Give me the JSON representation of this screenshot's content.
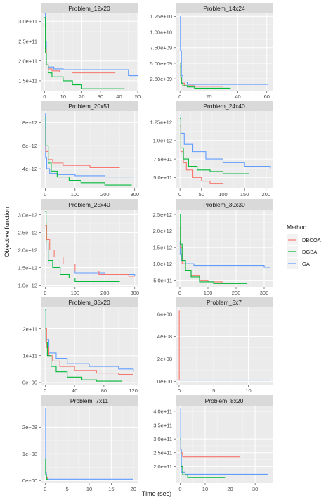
{
  "figure": {
    "xlabel": "Time (sec)",
    "ylabel": "Objective function",
    "legend": {
      "title": "Method",
      "placement": "right",
      "entries": [
        {
          "label": "DBCOA",
          "color": "#F8766D"
        },
        {
          "label": "DGBA",
          "color": "#00BA38"
        },
        {
          "label": "GA",
          "color": "#619CFF"
        }
      ]
    }
  },
  "chart_data": [
    {
      "type": "line",
      "title": "Problem_12x20",
      "xlim": [
        -2,
        50
      ],
      "ylim": [
        125000000000.0,
        320000000000.0
      ],
      "xticks": [
        0,
        10,
        20,
        30,
        40,
        50
      ],
      "xtick_labels": [
        "0",
        "10",
        "20",
        "30",
        "40",
        "50"
      ],
      "yticks": [
        150000000000.0,
        200000000000.0,
        250000000000.0,
        300000000000.0
      ],
      "ytick_labels": [
        "1.5e+11",
        "2.0e+11",
        "2.5e+11",
        "3.0e+11"
      ],
      "series": [
        {
          "name": "DBCOA",
          "x": [
            0,
            0.5,
            1,
            2,
            4,
            8,
            15,
            38
          ],
          "y": [
            290000000000.0,
            230000000000.0,
            190000000000.0,
            180000000000.0,
            175000000000.0,
            172000000000.0,
            170000000000.0,
            170000000000.0
          ]
        },
        {
          "name": "DGBA",
          "x": [
            0,
            0.5,
            1,
            2,
            4,
            10,
            15,
            20,
            43
          ],
          "y": [
            310000000000.0,
            220000000000.0,
            190000000000.0,
            170000000000.0,
            160000000000.0,
            150000000000.0,
            140000000000.0,
            130000000000.0,
            130000000000.0
          ]
        },
        {
          "name": "GA",
          "x": [
            0,
            0.5,
            1,
            2,
            5,
            10,
            45,
            50
          ],
          "y": [
            320000000000.0,
            250000000000.0,
            190000000000.0,
            185000000000.0,
            180000000000.0,
            178000000000.0,
            163000000000.0,
            163000000000.0
          ]
        }
      ]
    },
    {
      "type": "line",
      "title": "Problem_14x24",
      "xlim": [
        -3,
        64
      ],
      "ylim": [
        600000000.0,
        13000000000.0
      ],
      "xticks": [
        0,
        20,
        40,
        60
      ],
      "xtick_labels": [
        "0",
        "20",
        "40",
        "60"
      ],
      "yticks": [
        2500000000.0,
        5000000000.0,
        7500000000.0,
        10000000000.0,
        12500000000.0
      ],
      "ytick_labels": [
        "2.50e+09",
        "5.00e+09",
        "7.50e+09",
        "1.00e+10",
        "1.25e+10"
      ],
      "series": [
        {
          "name": "DBCOA",
          "x": [
            0,
            0.5,
            1,
            3,
            10,
            30
          ],
          "y": [
            4500000000.0,
            2500000000.0,
            1800000000.0,
            1400000000.0,
            1300000000.0,
            1300000000.0
          ]
        },
        {
          "name": "DGBA",
          "x": [
            0,
            0.5,
            1,
            2,
            5,
            10,
            35
          ],
          "y": [
            5000000000.0,
            2800000000.0,
            1800000000.0,
            1400000000.0,
            1200000000.0,
            1000000000.0,
            1000000000.0
          ]
        },
        {
          "name": "GA",
          "x": [
            0,
            0.3,
            1,
            2,
            5,
            61
          ],
          "y": [
            12500000000.0,
            7000000000.0,
            3000000000.0,
            2000000000.0,
            1600000000.0,
            1600000000.0
          ]
        }
      ]
    },
    {
      "type": "line",
      "title": "Problem_20x51",
      "xlim": [
        -15,
        310
      ],
      "ylim": [
        2300000000000.0,
        9000000000000.0
      ],
      "xticks": [
        0,
        100,
        200,
        300
      ],
      "xtick_labels": [
        "0",
        "100",
        "200",
        "300"
      ],
      "yticks": [
        4000000000000.0,
        6000000000000.0,
        8000000000000.0
      ],
      "ytick_labels": [
        "4e+12",
        "6e+12",
        "8e+12"
      ],
      "series": [
        {
          "name": "DBCOA",
          "x": [
            0,
            2,
            10,
            25,
            60,
            100,
            150,
            250
          ],
          "y": [
            7500000000000.0,
            5500000000000.0,
            4800000000000.0,
            4500000000000.0,
            4300000000000.0,
            4300000000000.0,
            4100000000000.0,
            4100000000000.0
          ]
        },
        {
          "name": "DGBA",
          "x": [
            0,
            2,
            10,
            20,
            40,
            80,
            120,
            200,
            290
          ],
          "y": [
            8500000000000.0,
            6000000000000.0,
            4500000000000.0,
            3800000000000.0,
            3300000000000.0,
            3000000000000.0,
            2800000000000.0,
            2600000000000.0,
            2600000000000.0
          ]
        },
        {
          "name": "GA",
          "x": [
            0,
            1,
            5,
            15,
            40,
            100,
            200,
            300
          ],
          "y": [
            8800000000000.0,
            5000000000000.0,
            4000000000000.0,
            3600000000000.0,
            3500000000000.0,
            3400000000000.0,
            3300000000000.0,
            3300000000000.0
          ]
        }
      ]
    },
    {
      "type": "line",
      "title": "Problem_24x40",
      "xlim": [
        -10,
        215
      ],
      "ylim": [
        350000000000.0,
        1400000000000.0
      ],
      "xticks": [
        0,
        50,
        100,
        150,
        200
      ],
      "xtick_labels": [
        "0",
        "50",
        "100",
        "150",
        "200"
      ],
      "yticks": [
        500000000000.0,
        750000000000.0,
        1000000000000.0,
        1250000000000.0
      ],
      "ytick_labels": [
        "5.0e+11",
        "7.5e+11",
        "1.0e+12",
        "1.25e+12"
      ],
      "series": [
        {
          "name": "DBCOA",
          "x": [
            0,
            2,
            8,
            15,
            30,
            50,
            70,
            100
          ],
          "y": [
            1200000000000.0,
            850000000000.0,
            700000000000.0,
            600000000000.0,
            500000000000.0,
            450000000000.0,
            420000000000.0,
            420000000000.0
          ]
        },
        {
          "name": "DGBA",
          "x": [
            0,
            2,
            8,
            20,
            40,
            70,
            100,
            160
          ],
          "y": [
            1300000000000.0,
            900000000000.0,
            750000000000.0,
            650000000000.0,
            600000000000.0,
            580000000000.0,
            550000000000.0,
            550000000000.0
          ]
        },
        {
          "name": "GA",
          "x": [
            0,
            2,
            10,
            30,
            60,
            100,
            150,
            210
          ],
          "y": [
            1350000000000.0,
            1100000000000.0,
            950000000000.0,
            850000000000.0,
            750000000000.0,
            700000000000.0,
            650000000000.0,
            620000000000.0
          ]
        }
      ]
    },
    {
      "type": "line",
      "title": "Problem_25x40",
      "xlim": [
        -15,
        310
      ],
      "ylim": [
        950000000000.0,
        3150000000000.0
      ],
      "xticks": [
        0,
        100,
        200,
        300
      ],
      "xtick_labels": [
        "0",
        "100",
        "200",
        "300"
      ],
      "yticks": [
        1000000000000.0,
        1500000000000.0,
        2000000000000.0,
        2500000000000.0,
        3000000000000.0
      ],
      "ytick_labels": [
        "1.0e+12",
        "1.5e+12",
        "2.0e+12",
        "2.5e+12",
        "3.0e+12"
      ],
      "series": [
        {
          "name": "DBCOA",
          "x": [
            0,
            5,
            15,
            30,
            60,
            100,
            180,
            280,
            300
          ],
          "y": [
            2700000000000.0,
            2300000000000.0,
            2000000000000.0,
            1800000000000.0,
            1600000000000.0,
            1400000000000.0,
            1300000000000.0,
            1250000000000.0,
            1250000000000.0
          ]
        },
        {
          "name": "DGBA",
          "x": [
            0,
            3,
            10,
            25,
            50,
            80,
            100,
            150,
            250
          ],
          "y": [
            3100000000000.0,
            2200000000000.0,
            1700000000000.0,
            1500000000000.0,
            1300000000000.0,
            1200000000000.0,
            1100000000000.0,
            1100000000000.0,
            1100000000000.0
          ]
        },
        {
          "name": "GA",
          "x": [
            0,
            3,
            10,
            25,
            50,
            100,
            200,
            300
          ],
          "y": [
            2800000000000.0,
            2000000000000.0,
            1600000000000.0,
            1500000000000.0,
            1400000000000.0,
            1350000000000.0,
            1300000000000.0,
            1250000000000.0
          ]
        }
      ]
    },
    {
      "type": "line",
      "title": "Problem_30x30",
      "xlim": [
        -15,
        330
      ],
      "ylim": [
        300000000000.0,
        2650000000000.0
      ],
      "xticks": [
        0,
        100,
        200,
        300
      ],
      "xtick_labels": [
        "0",
        "100",
        "200",
        "300"
      ],
      "yticks": [
        500000000000.0,
        1000000000000.0,
        1500000000000.0,
        2000000000000.0,
        2500000000000.0
      ],
      "ytick_labels": [
        "5.0e+11",
        "1.0e+12",
        "1.5e+12",
        "2.0e+12",
        "2.5e+12"
      ],
      "series": [
        {
          "name": "DBCOA",
          "x": [
            0,
            2,
            8,
            20,
            40,
            70,
            100,
            150,
            210
          ],
          "y": [
            2100000000000.0,
            1500000000000.0,
            1000000000000.0,
            800000000000.0,
            650000000000.0,
            500000000000.0,
            450000000000.0,
            400000000000.0,
            400000000000.0
          ]
        },
        {
          "name": "DGBA",
          "x": [
            0,
            2,
            8,
            20,
            40,
            70,
            120,
            240
          ],
          "y": [
            2500000000000.0,
            1600000000000.0,
            1100000000000.0,
            800000000000.0,
            600000000000.0,
            450000000000.0,
            400000000000.0,
            400000000000.0
          ]
        },
        {
          "name": "GA",
          "x": [
            0,
            1,
            5,
            20,
            50,
            100,
            300,
            320
          ],
          "y": [
            1700000000000.0,
            1300000000000.0,
            1100000000000.0,
            1000000000000.0,
            950000000000.0,
            950000000000.0,
            900000000000.0,
            900000000000.0
          ]
        }
      ]
    },
    {
      "type": "line",
      "title": "Problem_35x20",
      "xlim": [
        -6,
        126
      ],
      "ylim": [
        -8000000000.0,
        280000000000.0
      ],
      "xticks": [
        0,
        40,
        80,
        120
      ],
      "xtick_labels": [
        "0",
        "40",
        "80",
        "120"
      ],
      "yticks": [
        0,
        100000000000.0,
        200000000000.0
      ],
      "ytick_labels": [
        "0e+00",
        "1e+11",
        "2e+11"
      ],
      "series": [
        {
          "name": "DBCOA",
          "x": [
            0,
            2,
            5,
            10,
            20,
            40,
            70,
            100,
            120
          ],
          "y": [
            200000000000.0,
            130000000000.0,
            100000000000.0,
            80000000000.0,
            60000000000.0,
            45000000000.0,
            35000000000.0,
            30000000000.0,
            30000000000.0
          ]
        },
        {
          "name": "DGBA",
          "x": [
            0,
            1,
            3,
            8,
            15,
            30,
            50,
            70,
            105
          ],
          "y": [
            270000000000.0,
            150000000000.0,
            100000000000.0,
            60000000000.0,
            40000000000.0,
            20000000000.0,
            10000000000.0,
            5000000000.0,
            5000000000.0
          ]
        },
        {
          "name": "GA",
          "x": [
            0,
            1,
            5,
            15,
            30,
            60,
            100,
            120
          ],
          "y": [
            270000000000.0,
            160000000000.0,
            110000000000.0,
            90000000000.0,
            70000000000.0,
            60000000000.0,
            50000000000.0,
            40000000000.0
          ]
        }
      ]
    },
    {
      "type": "line",
      "title": "Problem_5x7",
      "xlim": [
        -0.5,
        13.5
      ],
      "ylim": [
        -30000000.0,
        660000000.0
      ],
      "xticks": [
        0,
        5,
        10
      ],
      "xtick_labels": [
        "0",
        "5",
        "10"
      ],
      "yticks": [
        0,
        200000000.0,
        400000000.0,
        600000000.0
      ],
      "ytick_labels": [
        "0e+00",
        "2e+08",
        "4e+08",
        "6e+08"
      ],
      "series": [
        {
          "name": "DBCOA",
          "x": [
            0,
            0.02,
            0.05
          ],
          "y": [
            630000000.0,
            10000000.0,
            10000000.0
          ]
        },
        {
          "name": "DGBA",
          "x": [
            0,
            0.05
          ],
          "y": [
            10000000.0,
            10000000.0
          ]
        },
        {
          "name": "GA",
          "x": [
            0,
            13.2
          ],
          "y": [
            10000000.0,
            10000000.0
          ]
        }
      ]
    },
    {
      "type": "line",
      "title": "Problem_7x11",
      "xlim": [
        -1,
        21
      ],
      "ylim": [
        -10000000.0,
        280000000.0
      ],
      "xticks": [
        0,
        5,
        10,
        15,
        20
      ],
      "xtick_labels": [
        "0",
        "5",
        "10",
        "15",
        "20"
      ],
      "yticks": [
        0,
        100000000.0,
        200000000.0
      ],
      "ytick_labels": [
        "0e+00",
        "1e+08",
        "2e+08"
      ],
      "series": [
        {
          "name": "DBCOA",
          "x": [
            0,
            0.2,
            0.6
          ],
          "y": [
            50000000.0,
            10000000.0,
            5000000.0
          ]
        },
        {
          "name": "DGBA",
          "x": [
            0,
            0.1,
            0.3,
            0.6
          ],
          "y": [
            80000000.0,
            20000000.0,
            5000000.0,
            5000000.0
          ]
        },
        {
          "name": "GA",
          "x": [
            0,
            0.1,
            0.3,
            20
          ],
          "y": [
            270000000.0,
            30000000.0,
            5000000.0,
            5000000.0
          ]
        }
      ]
    },
    {
      "type": "line",
      "title": "Problem_8x20",
      "xlim": [
        -1.8,
        37
      ],
      "ylim": [
        140000000000.0,
        420000000000.0
      ],
      "xticks": [
        0,
        10,
        20,
        30
      ],
      "xtick_labels": [
        "0",
        "10",
        "20",
        "30"
      ],
      "yticks": [
        200000000000.0,
        250000000000.0,
        300000000000.0,
        350000000000.0,
        400000000000.0
      ],
      "ytick_labels": [
        "2.0e+11",
        "2.5e+11",
        "3.0e+11",
        "3.5e+11",
        "4.0e+11"
      ],
      "series": [
        {
          "name": "DBCOA",
          "x": [
            0,
            0.3,
            1,
            24
          ],
          "y": [
            300000000000.0,
            250000000000.0,
            235000000000.0,
            235000000000.0
          ]
        },
        {
          "name": "DGBA",
          "x": [
            0,
            0.3,
            1,
            3,
            18
          ],
          "y": [
            300000000000.0,
            200000000000.0,
            170000000000.0,
            160000000000.0,
            160000000000.0
          ]
        },
        {
          "name": "GA",
          "x": [
            0,
            0.2,
            0.5,
            2,
            35
          ],
          "y": [
            410000000000.0,
            260000000000.0,
            180000000000.0,
            172000000000.0,
            172000000000.0
          ]
        }
      ]
    }
  ]
}
